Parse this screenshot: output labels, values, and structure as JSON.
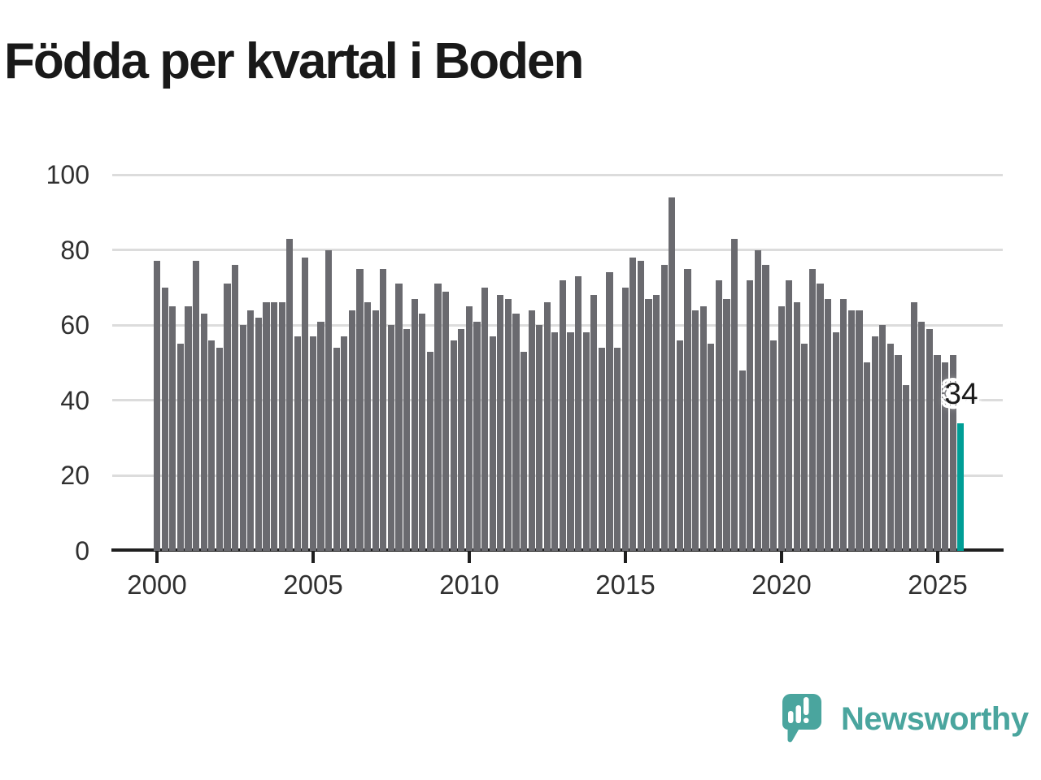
{
  "title": "Födda per kvartal i Boden",
  "chart_data": {
    "type": "bar",
    "title": "Födda per kvartal i Boden",
    "x_start": "2000-Q1",
    "x_end": "2025-Q4",
    "x_unit": "quarter",
    "x_tick_labels": [
      "2000",
      "2005",
      "2010",
      "2015",
      "2020",
      "2025"
    ],
    "x_tick_indices": [
      0,
      20,
      40,
      60,
      80,
      100
    ],
    "y_ticks": [
      0,
      20,
      40,
      60,
      80,
      100
    ],
    "ylim": [
      0,
      100
    ],
    "grid": "horizontal",
    "legend": "none",
    "values": [
      77,
      70,
      65,
      55,
      65,
      77,
      63,
      56,
      54,
      71,
      76,
      60,
      64,
      62,
      66,
      66,
      66,
      83,
      57,
      78,
      57,
      61,
      80,
      54,
      57,
      64,
      75,
      66,
      64,
      75,
      60,
      71,
      59,
      67,
      63,
      53,
      71,
      69,
      56,
      59,
      65,
      61,
      70,
      57,
      68,
      67,
      63,
      53,
      64,
      60,
      66,
      58,
      72,
      58,
      73,
      58,
      68,
      54,
      74,
      54,
      70,
      78,
      77,
      67,
      68,
      76,
      94,
      56,
      75,
      64,
      65,
      55,
      72,
      67,
      83,
      48,
      72,
      80,
      76,
      56,
      65,
      72,
      66,
      55,
      75,
      71,
      67,
      58,
      67,
      64,
      64,
      50,
      57,
      60,
      55,
      52,
      44,
      66,
      61,
      59,
      52,
      50,
      52,
      34
    ],
    "highlight_index": 103,
    "highlight_value": 34,
    "highlight_label": "34",
    "bar_color": "#6A6A6F",
    "highlight_color": "#009E96",
    "grid_color": "#DCDCDC",
    "axis_color": "#1F1F1F",
    "tick_label_color": "#303030"
  },
  "logo": {
    "text": "Newsworthy",
    "color": "#4AA59E",
    "icon": "newsworthy-speech-bubble-chart-icon"
  }
}
